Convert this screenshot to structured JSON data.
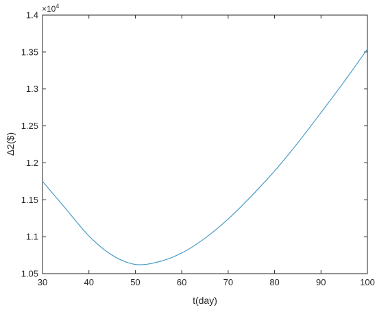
{
  "chart_data": {
    "type": "line",
    "title": "",
    "xlabel": "t(day)",
    "ylabel": "Δ2($)",
    "y_exponent_label": "×10",
    "y_exponent_power": "4",
    "xlim": [
      30,
      100
    ],
    "ylim": [
      1.05,
      1.4
    ],
    "x_ticks": [
      30,
      40,
      50,
      60,
      70,
      80,
      90,
      100
    ],
    "x_tick_labels": [
      "30",
      "40",
      "50",
      "60",
      "70",
      "80",
      "90",
      "100"
    ],
    "y_ticks": [
      1.05,
      1.1,
      1.15,
      1.2,
      1.25,
      1.3,
      1.35,
      1.4
    ],
    "y_tick_labels": [
      "1.05",
      "1.1",
      "1.15",
      "1.2",
      "1.25",
      "1.3",
      "1.35",
      "1.4"
    ],
    "grid": false,
    "line_color": "#4a9bc4",
    "series": [
      {
        "x": [
          30,
          35,
          40,
          45,
          50,
          55,
          60,
          65,
          70,
          75,
          80,
          85,
          90,
          95,
          100
        ],
        "values": [
          1.175,
          1.138,
          1.101,
          1.075,
          1.0625,
          1.066,
          1.078,
          1.098,
          1.124,
          1.155,
          1.189,
          1.227,
          1.268,
          1.31,
          1.354
        ]
      }
    ]
  }
}
